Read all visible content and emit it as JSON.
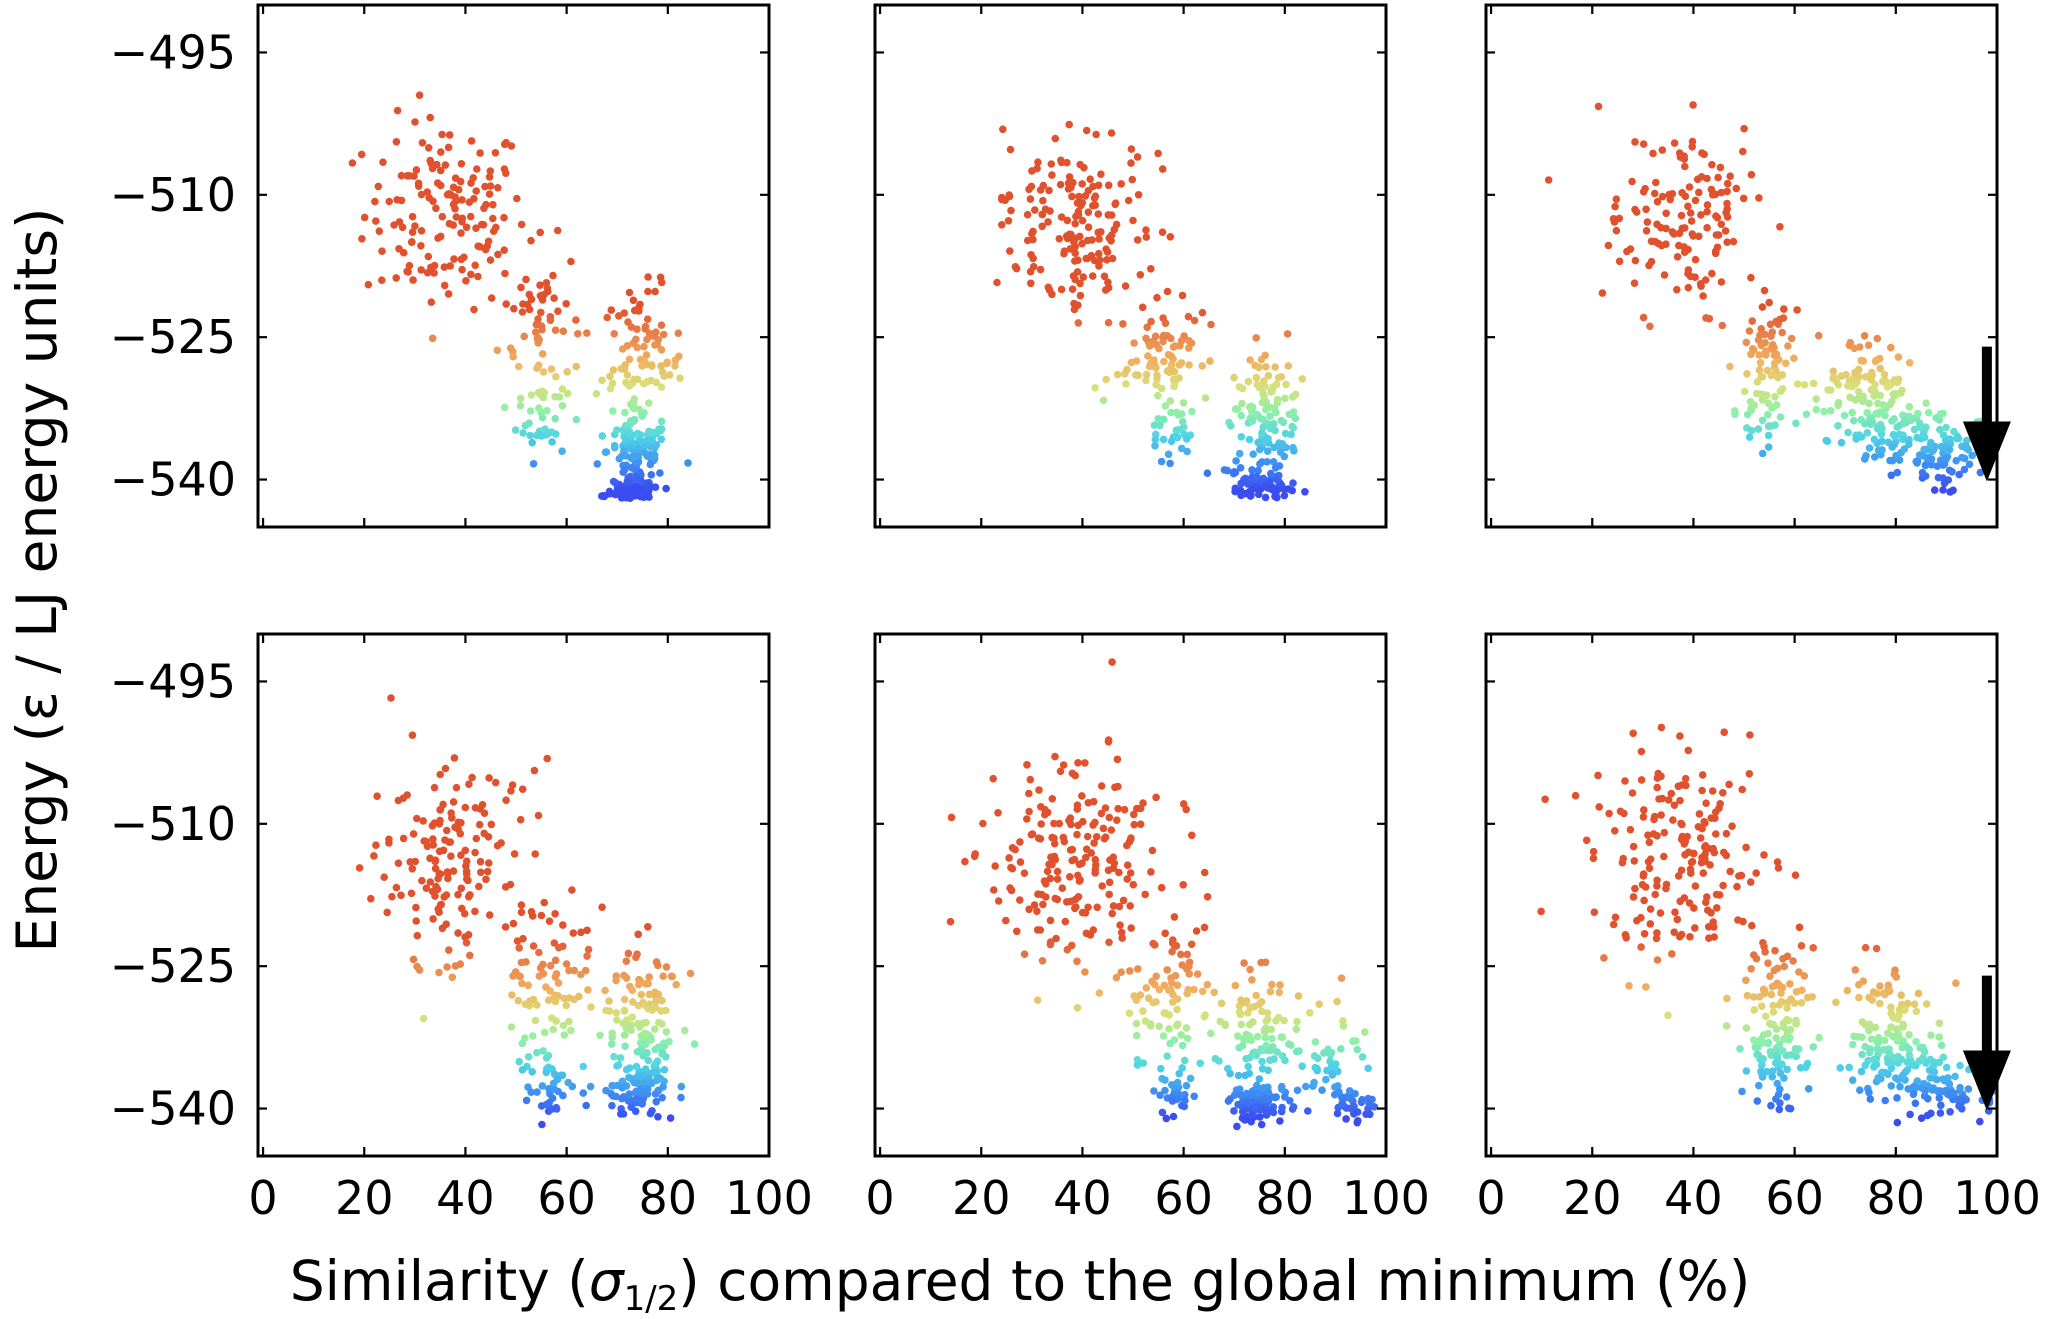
{
  "chart_data": {
    "type": "scatter",
    "layout": "2x3 grid",
    "xlabel": "Similarity (σ1/2) compared to the global minimum (%)",
    "xlabel_parts": {
      "pre": "Similarity (",
      "symbol": "σ",
      "sub": "1/2",
      "post": ") compared to the global minimum (%)"
    },
    "ylabel": "Energy (ε / LJ energy units)",
    "xlim": [
      -1,
      100
    ],
    "ylim": [
      -545,
      -490
    ],
    "xticks": [
      0,
      20,
      40,
      60,
      80,
      100
    ],
    "yticks": [
      -495,
      -510,
      -525,
      -540
    ],
    "tick_labels_x": [
      "0",
      "20",
      "40",
      "60",
      "80",
      "100"
    ],
    "tick_labels_y": [
      "−495",
      "−510",
      "−525",
      "−540"
    ],
    "colormap": "rainbow (blue = low energy, red = high energy)",
    "color_scale": [
      "#3b4cf0",
      "#3f8ff2",
      "#4fd3e6",
      "#8ff0a8",
      "#d9e07a",
      "#f0b060",
      "#e8824a",
      "#e0522e"
    ],
    "grid": false,
    "legend": "none",
    "panels": [
      {
        "row": 0,
        "col": 0,
        "arrow": false,
        "clusters": [
          {
            "cx": 36,
            "cy": -512,
            "sx": 8,
            "sy": 5,
            "n": 150
          },
          {
            "cx": 55,
            "cy": -523,
            "sx": 4,
            "sy": 4,
            "n": 60
          },
          {
            "cx": 55,
            "cy": -533,
            "sx": 2.5,
            "sy": 2.5,
            "n": 40
          },
          {
            "cx": 75,
            "cy": -528,
            "sx": 4,
            "sy": 4,
            "n": 100
          },
          {
            "cx": 74,
            "cy": -537,
            "sx": 3,
            "sy": 1.5,
            "n": 90
          },
          {
            "cx": 73,
            "cy": -541,
            "sx": 2.5,
            "sy": 0.8,
            "n": 80
          }
        ]
      },
      {
        "row": 0,
        "col": 1,
        "arrow": false,
        "clusters": [
          {
            "cx": 38,
            "cy": -513,
            "sx": 7,
            "sy": 5,
            "n": 170
          },
          {
            "cx": 56,
            "cy": -527,
            "sx": 4,
            "sy": 3,
            "n": 80
          },
          {
            "cx": 58,
            "cy": -535,
            "sx": 2,
            "sy": 2.5,
            "n": 30
          },
          {
            "cx": 76,
            "cy": -533,
            "sx": 3.5,
            "sy": 3.5,
            "n": 120
          },
          {
            "cx": 75,
            "cy": -540.5,
            "sx": 3,
            "sy": 0.7,
            "n": 70
          }
        ]
      },
      {
        "row": 0,
        "col": 2,
        "arrow": true,
        "arrow_x": 98,
        "arrow_y0": -526,
        "arrow_y1": -540,
        "clusters": [
          {
            "cx": 38,
            "cy": -513,
            "sx": 8,
            "sy": 5,
            "n": 140
          },
          {
            "cx": 55,
            "cy": -527,
            "sx": 3,
            "sy": 3,
            "n": 60
          },
          {
            "cx": 54,
            "cy": -533,
            "sx": 2.5,
            "sy": 2,
            "n": 30
          },
          {
            "cx": 74,
            "cy": -530,
            "sx": 4,
            "sy": 2.5,
            "n": 90
          },
          {
            "cx": 80,
            "cy": -535,
            "sx": 5,
            "sy": 2,
            "n": 90
          },
          {
            "cx": 90,
            "cy": -538,
            "sx": 4,
            "sy": 1.8,
            "n": 70
          }
        ]
      },
      {
        "row": 1,
        "col": 0,
        "arrow": false,
        "clusters": [
          {
            "cx": 36,
            "cy": -514,
            "sx": 8,
            "sy": 5.5,
            "n": 160
          },
          {
            "cx": 57,
            "cy": -527,
            "sx": 4,
            "sy": 4,
            "n": 80
          },
          {
            "cx": 57,
            "cy": -537,
            "sx": 2.5,
            "sy": 2,
            "n": 40
          },
          {
            "cx": 75,
            "cy": -530,
            "sx": 4,
            "sy": 3.5,
            "n": 110
          },
          {
            "cx": 74,
            "cy": -538,
            "sx": 3.5,
            "sy": 1.5,
            "n": 90
          }
        ]
      },
      {
        "row": 1,
        "col": 1,
        "arrow": false,
        "clusters": [
          {
            "cx": 38,
            "cy": -514,
            "sx": 9,
            "sy": 5.5,
            "n": 200
          },
          {
            "cx": 58,
            "cy": -528,
            "sx": 4,
            "sy": 4,
            "n": 80
          },
          {
            "cx": 58,
            "cy": -538,
            "sx": 2,
            "sy": 1.5,
            "n": 30
          },
          {
            "cx": 75,
            "cy": -533,
            "sx": 4,
            "sy": 3.5,
            "n": 110
          },
          {
            "cx": 75,
            "cy": -539.5,
            "sx": 3,
            "sy": 1,
            "n": 70
          },
          {
            "cx": 90,
            "cy": -534,
            "sx": 3,
            "sy": 3,
            "n": 40
          },
          {
            "cx": 94,
            "cy": -539.5,
            "sx": 2,
            "sy": 1,
            "n": 30
          }
        ]
      },
      {
        "row": 1,
        "col": 2,
        "arrow": true,
        "arrow_x": 98,
        "arrow_y0": -526,
        "arrow_y1": -540,
        "clusters": [
          {
            "cx": 38,
            "cy": -514,
            "sx": 9,
            "sy": 5.5,
            "n": 180
          },
          {
            "cx": 56,
            "cy": -529,
            "sx": 4,
            "sy": 3.5,
            "n": 90
          },
          {
            "cx": 56,
            "cy": -535,
            "sx": 2.5,
            "sy": 2.5,
            "n": 50
          },
          {
            "cx": 77,
            "cy": -531,
            "sx": 4.5,
            "sy": 3.5,
            "n": 90
          },
          {
            "cx": 82,
            "cy": -536,
            "sx": 5,
            "sy": 2,
            "n": 70
          },
          {
            "cx": 92,
            "cy": -538.5,
            "sx": 4,
            "sy": 1.5,
            "n": 60
          }
        ]
      }
    ]
  }
}
